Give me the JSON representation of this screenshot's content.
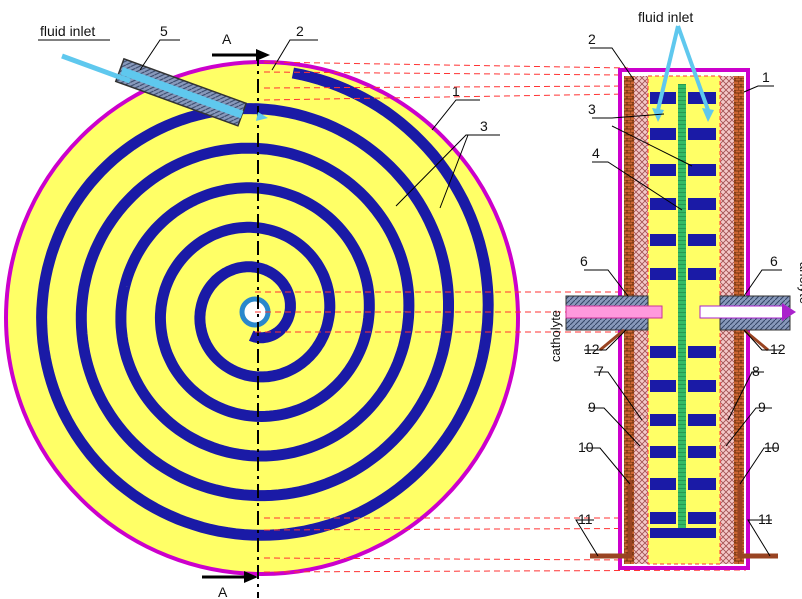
{
  "labels": {
    "fluid_inlet_left": "fluid inlet",
    "fluid_inlet_right": "fluid inlet",
    "section_top": "A",
    "section_bottom": "A",
    "catholyte": "catholyte",
    "anolyte": "anolyte",
    "n1": "1",
    "n1r": "1",
    "n2": "2",
    "n2r": "2",
    "n3": "3",
    "n3r": "3",
    "n4": "4",
    "n5": "5",
    "n6l": "6",
    "n6r": "6",
    "n7": "7",
    "n8": "8",
    "n9l": "9",
    "n9r": "9",
    "n10l": "10",
    "n10r": "10",
    "n11l": "11",
    "n11r": "11",
    "n12l": "12",
    "n12r": "12"
  },
  "colors": {
    "disk_fill": "#ffff66",
    "rim": "#cc00cc",
    "spiral": "#1a1aa6",
    "pipe": "#5fc8ee",
    "green_membrane": "#33bb66",
    "electrode": "#bb5522",
    "mesh": "#d9a0a0",
    "catholyte": "#ff66cc",
    "anolyte": "#aa22cc",
    "dashes": "#ff3333"
  }
}
